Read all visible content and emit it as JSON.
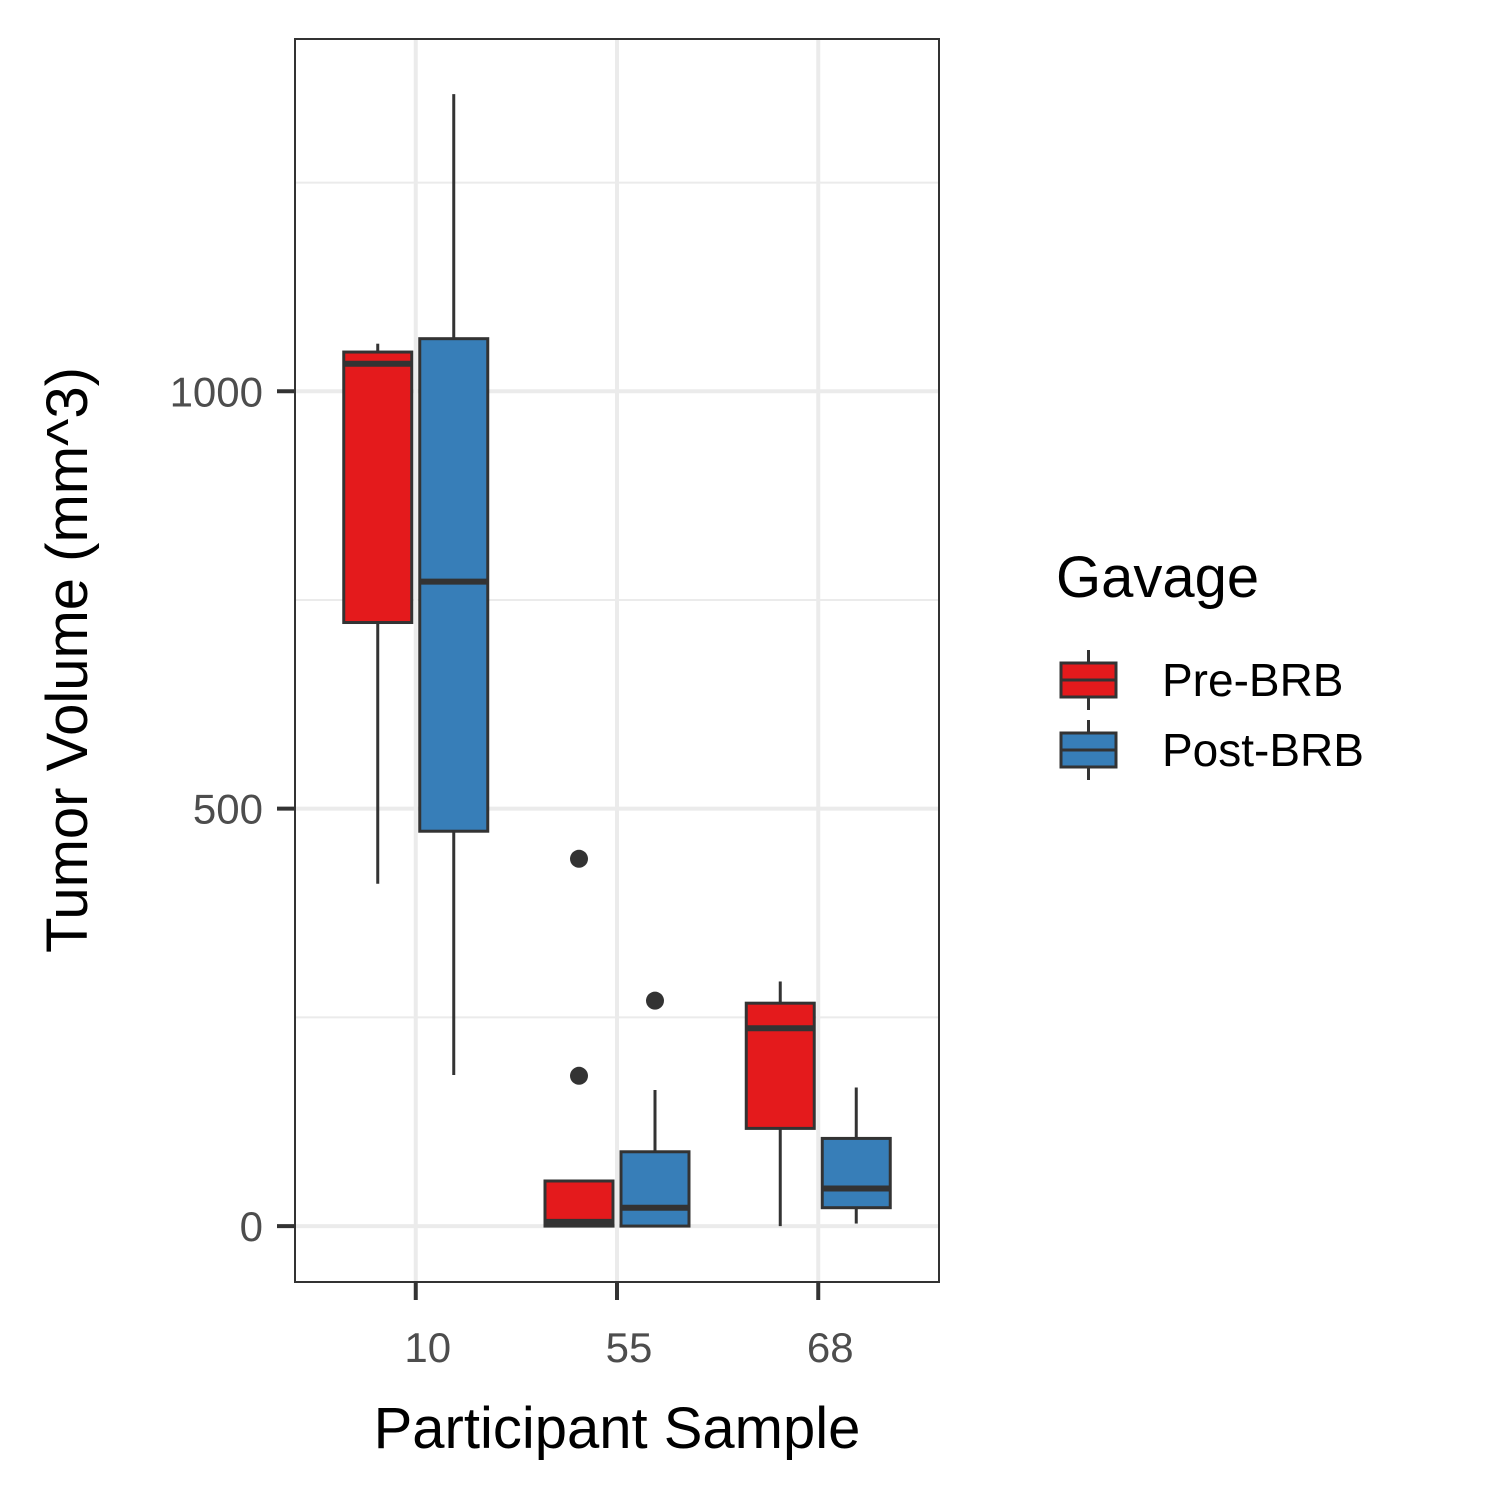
{
  "chart_data": {
    "type": "boxplot",
    "xlabel": "Participant Sample",
    "ylabel": "Tumor Volume (mm^3)",
    "categories": [
      "10",
      "55",
      "68"
    ],
    "y_ticks": [
      0,
      500,
      1000
    ],
    "y_tick_labels": [
      "0",
      "500",
      "1000"
    ],
    "ylim": [
      -67,
      1422
    ],
    "grid": true,
    "legend_position": "right",
    "legend": {
      "title": "Gavage",
      "entries": [
        "Pre-BRB",
        "Post-BRB"
      ]
    },
    "series": [
      {
        "name": "Pre-BRB",
        "color": "#e41a1c",
        "boxes": [
          {
            "category": "10",
            "min": 410,
            "q1": 723,
            "median": 1033,
            "q3": 1047,
            "max": 1057,
            "outliers": []
          },
          {
            "category": "55",
            "min": 0,
            "q1": 0,
            "median": 5,
            "q3": 54,
            "max": 54,
            "outliers": [
              180,
              440
            ]
          },
          {
            "category": "68",
            "min": 0,
            "q1": 117,
            "median": 237,
            "q3": 267,
            "max": 293,
            "outliers": []
          }
        ]
      },
      {
        "name": "Post-BRB",
        "color": "#377eb8",
        "boxes": [
          {
            "category": "10",
            "min": 181,
            "q1": 473,
            "median": 772,
            "q3": 1063,
            "max": 1356,
            "outliers": []
          },
          {
            "category": "55",
            "min": 0,
            "q1": 0,
            "median": 22,
            "q3": 89,
            "max": 163,
            "outliers": [
              270
            ]
          },
          {
            "category": "68",
            "min": 3,
            "q1": 22,
            "median": 45,
            "q3": 105,
            "max": 166,
            "outliers": []
          }
        ]
      }
    ]
  }
}
